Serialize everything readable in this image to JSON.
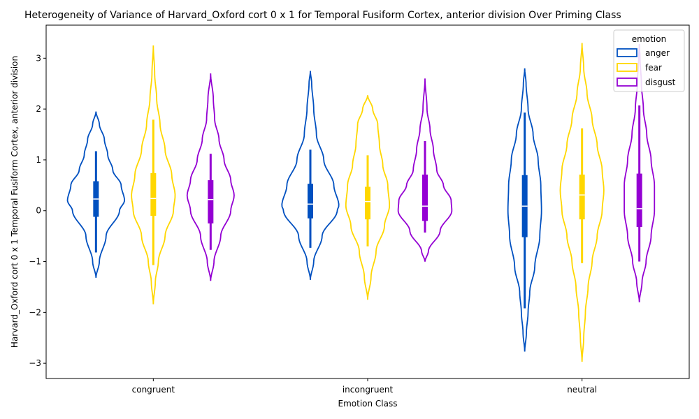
{
  "chart_data": {
    "type": "violin",
    "title": "Heterogeneity of Variance of Harvard_Oxford cort 0 x 1 for Temporal Fusiform Cortex, anterior division Over Priming Class",
    "xlabel": "Emotion Class",
    "ylabel": "Harvard_Oxford cort 0 x 1 Temporal Fusiform Cortex, anterior division",
    "ylim": [
      -3.3,
      3.65
    ],
    "yticks": [
      -3,
      -2,
      -1,
      0,
      1,
      2,
      3
    ],
    "categories": [
      "congruent",
      "incongruent",
      "neutral"
    ],
    "legend": {
      "title": "emotion",
      "placement": "top-right"
    },
    "series": [
      {
        "name": "anger",
        "color": "#0050c0",
        "groups": [
          {
            "min": -1.32,
            "max": 1.95,
            "q1": -0.12,
            "median": 0.23,
            "q3": 0.58,
            "wlo": -0.82,
            "whi": 1.17,
            "profile": [
              [
                -1.32,
                0.0
              ],
              [
                -1.0,
                0.1
              ],
              [
                -0.5,
                0.3
              ],
              [
                0.0,
                0.7
              ],
              [
                0.2,
                0.85
              ],
              [
                0.5,
                0.75
              ],
              [
                0.8,
                0.5
              ],
              [
                1.1,
                0.35
              ],
              [
                1.4,
                0.25
              ],
              [
                1.7,
                0.1
              ],
              [
                1.95,
                0.0
              ]
            ]
          },
          {
            "min": -1.36,
            "max": 2.75,
            "q1": -0.15,
            "median": 0.13,
            "q3": 0.53,
            "wlo": -0.73,
            "whi": 1.2,
            "profile": [
              [
                -1.36,
                0.0
              ],
              [
                -1.0,
                0.1
              ],
              [
                -0.5,
                0.35
              ],
              [
                0.0,
                0.8
              ],
              [
                0.1,
                0.85
              ],
              [
                0.5,
                0.7
              ],
              [
                1.0,
                0.4
              ],
              [
                1.5,
                0.18
              ],
              [
                2.0,
                0.1
              ],
              [
                2.5,
                0.04
              ],
              [
                2.75,
                0.0
              ]
            ]
          },
          {
            "min": -2.77,
            "max": 2.8,
            "q1": -0.52,
            "median": 0.09,
            "q3": 0.7,
            "wlo": -1.92,
            "whi": 1.93,
            "profile": [
              [
                -2.77,
                0.0
              ],
              [
                -2.4,
                0.05
              ],
              [
                -2.0,
                0.1
              ],
              [
                -1.6,
                0.15
              ],
              [
                -1.1,
                0.3
              ],
              [
                -0.5,
                0.45
              ],
              [
                0.0,
                0.5
              ],
              [
                0.5,
                0.48
              ],
              [
                1.0,
                0.4
              ],
              [
                1.5,
                0.25
              ],
              [
                2.0,
                0.1
              ],
              [
                2.5,
                0.04
              ],
              [
                2.8,
                0.0
              ]
            ]
          }
        ]
      },
      {
        "name": "fear",
        "color": "#ffd700",
        "groups": [
          {
            "min": -1.84,
            "max": 3.25,
            "q1": -0.1,
            "median": 0.24,
            "q3": 0.74,
            "wlo": -1.07,
            "whi": 1.79,
            "profile": [
              [
                -1.84,
                0.0
              ],
              [
                -1.4,
                0.06
              ],
              [
                -1.0,
                0.15
              ],
              [
                -0.5,
                0.35
              ],
              [
                0.0,
                0.6
              ],
              [
                0.3,
                0.65
              ],
              [
                0.7,
                0.55
              ],
              [
                1.2,
                0.35
              ],
              [
                1.7,
                0.2
              ],
              [
                2.2,
                0.1
              ],
              [
                2.7,
                0.04
              ],
              [
                3.25,
                0.0
              ]
            ]
          },
          {
            "min": -1.75,
            "max": 2.27,
            "q1": -0.17,
            "median": 0.18,
            "q3": 0.47,
            "wlo": -0.7,
            "whi": 1.09,
            "profile": [
              [
                -1.75,
                0.0
              ],
              [
                -1.3,
                0.1
              ],
              [
                -0.8,
                0.25
              ],
              [
                -0.3,
                0.5
              ],
              [
                0.1,
                0.65
              ],
              [
                0.5,
                0.6
              ],
              [
                0.9,
                0.45
              ],
              [
                1.3,
                0.35
              ],
              [
                1.7,
                0.3
              ],
              [
                2.0,
                0.15
              ],
              [
                2.27,
                0.0
              ]
            ]
          },
          {
            "min": -2.97,
            "max": 3.3,
            "q1": -0.17,
            "median": 0.31,
            "q3": 0.71,
            "wlo": -1.03,
            "whi": 1.62,
            "profile": [
              [
                -2.97,
                0.0
              ],
              [
                -2.5,
                0.05
              ],
              [
                -2.0,
                0.1
              ],
              [
                -1.5,
                0.18
              ],
              [
                -1.0,
                0.3
              ],
              [
                -0.5,
                0.45
              ],
              [
                0.0,
                0.6
              ],
              [
                0.4,
                0.65
              ],
              [
                0.8,
                0.6
              ],
              [
                1.3,
                0.45
              ],
              [
                1.8,
                0.3
              ],
              [
                2.3,
                0.15
              ],
              [
                2.8,
                0.05
              ],
              [
                3.3,
                0.0
              ]
            ]
          }
        ]
      },
      {
        "name": "disgust",
        "color": "#9400d3",
        "groups": [
          {
            "min": -1.38,
            "max": 2.7,
            "q1": -0.25,
            "median": 0.22,
            "q3": 0.6,
            "wlo": -0.77,
            "whi": 1.12,
            "profile": [
              [
                -1.38,
                0.0
              ],
              [
                -1.0,
                0.1
              ],
              [
                -0.5,
                0.3
              ],
              [
                0.0,
                0.6
              ],
              [
                0.3,
                0.7
              ],
              [
                0.6,
                0.6
              ],
              [
                1.0,
                0.4
              ],
              [
                1.4,
                0.25
              ],
              [
                1.8,
                0.12
              ],
              [
                2.2,
                0.08
              ],
              [
                2.7,
                0.0
              ]
            ]
          },
          {
            "min": -1.0,
            "max": 2.6,
            "q1": -0.2,
            "median": 0.09,
            "q3": 0.71,
            "wlo": -0.43,
            "whi": 1.37,
            "profile": [
              [
                -1.0,
                0.0
              ],
              [
                -0.8,
                0.1
              ],
              [
                -0.4,
                0.45
              ],
              [
                0.0,
                0.8
              ],
              [
                0.2,
                0.78
              ],
              [
                0.5,
                0.55
              ],
              [
                0.8,
                0.35
              ],
              [
                1.2,
                0.25
              ],
              [
                1.6,
                0.15
              ],
              [
                2.0,
                0.06
              ],
              [
                2.6,
                0.0
              ]
            ]
          },
          {
            "min": -1.8,
            "max": 3.28,
            "q1": -0.32,
            "median": 0.04,
            "q3": 0.73,
            "wlo": -1.0,
            "whi": 2.07,
            "profile": [
              [
                -1.8,
                0.0
              ],
              [
                -1.4,
                0.08
              ],
              [
                -1.0,
                0.2
              ],
              [
                -0.5,
                0.35
              ],
              [
                0.0,
                0.45
              ],
              [
                0.5,
                0.45
              ],
              [
                1.0,
                0.35
              ],
              [
                1.5,
                0.22
              ],
              [
                2.0,
                0.12
              ],
              [
                2.5,
                0.06
              ],
              [
                3.0,
                0.02
              ],
              [
                3.28,
                0.0
              ]
            ]
          }
        ]
      }
    ]
  }
}
